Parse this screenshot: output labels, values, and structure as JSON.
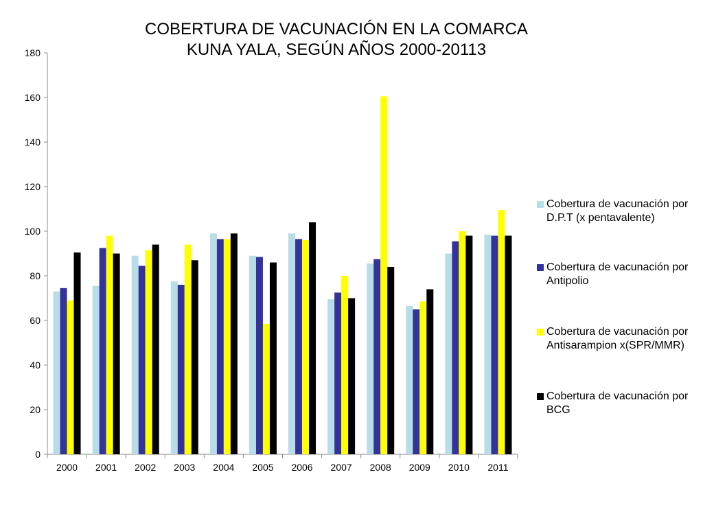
{
  "chart_data": {
    "type": "bar",
    "title_lines": [
      "COBERTURA DE VACUNACIÓN EN LA COMARCA",
      "KUNA YALA, SEGÚN AÑOS 2000-20113"
    ],
    "xlabel": "",
    "ylabel": "",
    "ylim": [
      0,
      180
    ],
    "yticks": [
      0,
      20,
      40,
      60,
      80,
      100,
      120,
      140,
      160,
      180
    ],
    "grid": false,
    "legend_position": "right",
    "categories": [
      "2000",
      "2001",
      "2002",
      "2003",
      "2004",
      "2005",
      "2006",
      "2007",
      "2008",
      "2009",
      "2010",
      "2011"
    ],
    "series": [
      {
        "name": "Cobertura de vacunación por D.P.T (x pentavalente)",
        "color": "#b7dde8",
        "values": [
          73,
          75.5,
          89,
          77.5,
          99,
          89,
          99,
          69.5,
          85.5,
          66.5,
          90,
          98.5
        ]
      },
      {
        "name": "Cobertura de vacunación por Antipolio",
        "color": "#333399",
        "values": [
          74.5,
          92.5,
          84.5,
          76,
          96.5,
          88.5,
          96.5,
          72.5,
          87.5,
          65,
          95.5,
          98
        ]
      },
      {
        "name": "Cobertura de vacunación por Antisarampion x(SPR/MMR)",
        "color": "#ffff00",
        "values": [
          69,
          98,
          91.5,
          94,
          96.5,
          58.5,
          96,
          80,
          160.5,
          68.5,
          100,
          109.5
        ]
      },
      {
        "name": "Cobertura de vacunación por BCG",
        "color": "#000000",
        "values": [
          90.5,
          90,
          94,
          87,
          99,
          86,
          104,
          70,
          84,
          74,
          98,
          98
        ]
      }
    ]
  }
}
